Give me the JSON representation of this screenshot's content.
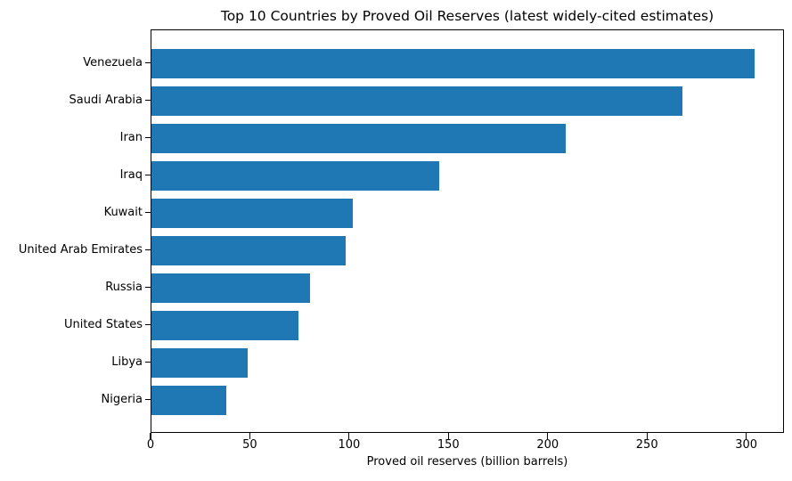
{
  "chart_data": {
    "type": "bar",
    "orientation": "horizontal",
    "title": "Top 10 Countries by Proved Oil Reserves (latest widely-cited estimates)",
    "xlabel": "Proved oil reserves (billion barrels)",
    "categories": [
      "Venezuela",
      "Saudi Arabia",
      "Iran",
      "Iraq",
      "Kuwait",
      "United Arab Emirates",
      "Russia",
      "United States",
      "Libya",
      "Nigeria"
    ],
    "values": [
      303.8,
      267.2,
      208.6,
      145.0,
      101.5,
      97.8,
      80.0,
      74.0,
      48.4,
      37.5
    ],
    "xticks": [
      0,
      50,
      100,
      150,
      200,
      250,
      300
    ],
    "xlim": [
      0,
      319
    ],
    "grid": false,
    "legend_position": "none",
    "bar_color": "#1f77b4",
    "axis_color": "#000000",
    "background_color": "#ffffff"
  }
}
